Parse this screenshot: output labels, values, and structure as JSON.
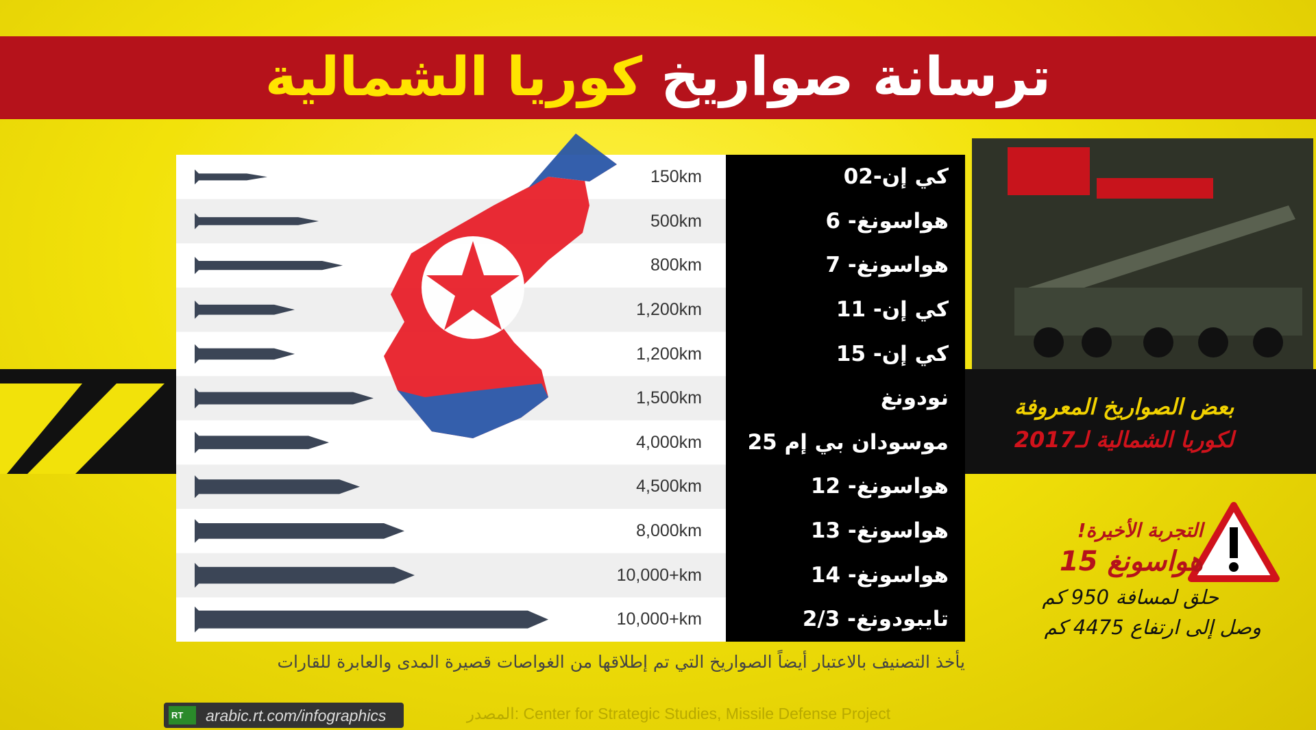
{
  "header": {
    "title_white": "ترسانة صواريخ",
    "title_yellow": "كوريا الشمالية"
  },
  "missiles": [
    {
      "name": "كي إن-02",
      "range": "150km"
    },
    {
      "name": "هواسونغ- 6",
      "range": "500km"
    },
    {
      "name": "هواسونغ- 7",
      "range": "800km"
    },
    {
      "name": "كي إن- 11",
      "range": "1,200km"
    },
    {
      "name": "كي إن- 15",
      "range": "1,200km"
    },
    {
      "name": "نودونغ",
      "range": "1,500km"
    },
    {
      "name": "موسودان بي إم 25",
      "range": "4,000km"
    },
    {
      "name": "هواسونغ- 12",
      "range": "4,500km"
    },
    {
      "name": "هواسونغ- 13",
      "range": "8,000km"
    },
    {
      "name": "هواسونغ- 14",
      "range": "10,000+km"
    },
    {
      "name": "تايبودونغ- 2/3",
      "range": "10,000+km"
    }
  ],
  "photo_caption": {
    "line1": "بعض الصواريخ المعروفة",
    "line2": "لكوريا الشمالية لـ2017"
  },
  "latest_test": {
    "label": "التجربة الأخيرة!",
    "missile": "هواسونغ 15",
    "distance": "حلق لمسافة 950 كم",
    "altitude": "وصل إلى ارتفاع 4475 كم"
  },
  "note": "يأخذ التصنيف بالاعتبار أيضاً الصواريخ التي تم إطلاقها من الغواصات قصيرة المدى والعابرة للقارات",
  "footer": {
    "logo": "RT",
    "url": "arabic.rt.com/infographics",
    "source": "المصدر: Center for Strategic Studies, Missile Defense Project"
  }
}
